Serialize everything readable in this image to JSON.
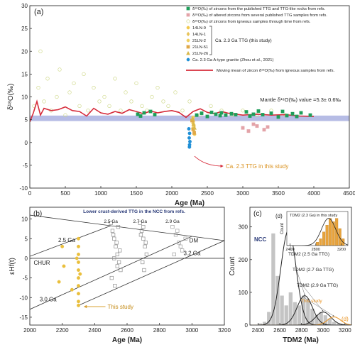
{
  "chart_data": [
    {
      "type": "scatter",
      "label": "(a)",
      "xlabel": "Age (Ma)",
      "ylabel": "δ¹⁸O(‰)",
      "xlim": [
        0,
        4500
      ],
      "xticks": [
        0,
        500,
        1000,
        1500,
        2000,
        2500,
        3000,
        3500,
        4000,
        4500
      ],
      "ylim": [
        -10,
        30
      ],
      "yticks": [
        -10,
        -5,
        0,
        5,
        10,
        15,
        20,
        25,
        30
      ],
      "legend": "upper right",
      "band": {
        "label": "Mantle δ¹⁸O(‰) value =5.3± 0.6‰",
        "range": [
          4.7,
          5.9
        ],
        "color": "#a9b0e0"
      },
      "bracket_label": "Ca. 2.3 Ga TTG (this study)",
      "annotation": "Ca. 2.3 TTG in this study",
      "series": [
        {
          "name": "δ¹⁸O(‰) of zircons from the published TTG and TTG-like rocks from refs.",
          "color": "#1e9e5a",
          "marker": "square",
          "x": [
            1520,
            1560,
            1610,
            1700,
            1760,
            2350,
            2420,
            2500,
            2560,
            2620,
            2680,
            2700,
            2760,
            2840,
            2900,
            3050,
            3100,
            3150,
            3220,
            3280,
            3400,
            3500,
            3560,
            3620,
            3700,
            3760,
            3820,
            3950
          ],
          "values": [
            6.2,
            5.8,
            6.5,
            6.8,
            6.1,
            6.0,
            6.4,
            5.7,
            6.6,
            6.2,
            5.9,
            6.5,
            6.0,
            6.3,
            6.1,
            6.7,
            5.8,
            6.2,
            6.9,
            6.1,
            6.4,
            5.6,
            6.8,
            5.9,
            6.3,
            5.7,
            6.5,
            6.0
          ]
        },
        {
          "name": "δ¹⁸O(‰) of altered zircons from several published TTG samples from refs.",
          "color": "#e3a3a8",
          "marker": "square",
          "x": [
            3000,
            3080,
            3150,
            3200,
            3300,
            3350
          ],
          "values": [
            3.2,
            2.5,
            4.0,
            3.6,
            2.8,
            3.4
          ]
        },
        {
          "name": "δ¹⁸O(‰) of zircons from igneous samples through time from refs.",
          "color": "#cfd98a",
          "marker": "open-circle",
          "x": [
            60,
            120,
            150,
            200,
            250,
            300,
            380,
            420,
            500,
            560,
            620,
            700,
            760,
            820,
            900,
            980,
            1050,
            1120,
            1200,
            1280,
            1350,
            1430,
            1500,
            1580,
            1650,
            1720,
            1800,
            1880,
            1950,
            2050,
            2150,
            2250,
            2400,
            2550,
            2700,
            2850,
            3000,
            3200,
            3400,
            3600
          ],
          "values": [
            8,
            12,
            20,
            9,
            14,
            7,
            10,
            16,
            6,
            11,
            13,
            8,
            15,
            7,
            12,
            9,
            10,
            8,
            14,
            7,
            11,
            9,
            13,
            8,
            7,
            10,
            12,
            9,
            8,
            11,
            7,
            9,
            6,
            8,
            7,
            6,
            7,
            6,
            7,
            6
          ]
        },
        {
          "name": "14LN-9",
          "color": "#f2c94c",
          "marker": "circle",
          "x": [
            2290,
            2300,
            2310
          ],
          "values": [
            5.0,
            4.2,
            3.5
          ]
        },
        {
          "name": "14LN-1",
          "color": "#e8c45a",
          "marker": "diamond",
          "x": [
            2295,
            2305,
            2315
          ],
          "values": [
            3.0,
            4.6,
            2.4
          ]
        },
        {
          "name": "21LN-2",
          "color": "#f0d060",
          "marker": "circle",
          "x": [
            2300,
            2310,
            2320
          ],
          "values": [
            5.5,
            3.8,
            1.8
          ]
        },
        {
          "name": "21LN-51",
          "color": "#e0a848",
          "marker": "square",
          "x": [
            2285,
            2300,
            2315
          ],
          "values": [
            4.8,
            2.9,
            2.1
          ]
        },
        {
          "name": "21LN-26",
          "color": "#d9b84a",
          "marker": "triangle",
          "x": [
            2305,
            2295,
            2320
          ],
          "values": [
            4.0,
            5.2,
            3.2
          ]
        },
        {
          "name": "Ca. 2.3 Ga A-type granite (Zhou et al., 2021)",
          "color": "#1f8fd6",
          "marker": "circle",
          "x": [
            2240,
            2250,
            2245,
            2255,
            2250,
            2248
          ],
          "values": [
            3.0,
            2.0,
            1.0,
            0.2,
            -0.5,
            -1.0
          ]
        },
        {
          "name": "Moving mean of zircon δ¹⁸O(‰) from igneous samples from refs.",
          "color": "#d62b3a",
          "marker": "line",
          "x": [
            0,
            50,
            100,
            150,
            200,
            300,
            400,
            500,
            600,
            700,
            800,
            900,
            1000,
            1100,
            1200,
            1300,
            1400,
            1500,
            1600,
            1700,
            1800,
            1900,
            2000,
            2100,
            2200,
            2300,
            2400,
            2500,
            2600,
            2700,
            2800,
            2900,
            3000,
            3200,
            3400,
            3600,
            3800,
            4000
          ],
          "values": [
            4.5,
            6.5,
            9,
            6,
            7.5,
            7,
            7.2,
            7.8,
            7,
            6.8,
            5.8,
            7.5,
            6.5,
            6.2,
            6.8,
            6.4,
            7.2,
            6.8,
            6.3,
            6.9,
            6.5,
            6.8,
            7,
            6.6,
            5.5,
            6.8,
            7.4,
            6.6,
            6.3,
            6.8,
            6.4,
            6.2,
            6.0,
            6.2,
            6.0,
            6.1,
            5.8,
            5.7
          ]
        }
      ]
    },
    {
      "type": "scatter",
      "label": "(b)",
      "xlabel": "Age (Ma)",
      "ylabel": "εHf(t)",
      "xlim": [
        2000,
        3200
      ],
      "xticks": [
        2000,
        2200,
        2400,
        2600,
        2800,
        3000,
        3200
      ],
      "ylim": [
        -17,
        13
      ],
      "yticks": [
        -15,
        -10,
        -5,
        0,
        5,
        10
      ],
      "annotation": "Lower crust-derived TTG in the NCC from refs.",
      "lines": [
        {
          "name": "DM",
          "x": [
            2000,
            3200
          ],
          "y": [
            11,
            4.5
          ]
        },
        {
          "name": "CHUR",
          "x": [
            2000,
            3200
          ],
          "y": [
            0,
            0
          ]
        },
        {
          "name": "2.5 Ga",
          "x": [
            2000,
            2500
          ],
          "y": [
            0.5,
            8.3
          ]
        },
        {
          "name": "3.0 Ga",
          "x": [
            2000,
            3000
          ],
          "y": [
            -13,
            5.6
          ]
        },
        {
          "name": "3.2 Ga",
          "x": [
            2300,
            3200
          ],
          "y": [
            -12,
            4.5
          ]
        }
      ],
      "series": [
        {
          "name": "2.5 Ga",
          "color": "#8f8f8f",
          "marker": "open-square",
          "x": [
            2500,
            2510,
            2520,
            2530,
            2540,
            2550,
            2560,
            2505,
            2525,
            2545,
            2515,
            2535,
            2555,
            2520,
            2540
          ],
          "values": [
            9,
            7,
            5,
            3,
            1,
            -1,
            -3,
            -5,
            -7,
            8,
            6,
            4,
            2,
            0,
            -2
          ]
        },
        {
          "name": "2.7 Ga",
          "color": "#8f8f8f",
          "marker": "open-square",
          "x": [
            2680,
            2690,
            2700,
            2710,
            2720,
            2695,
            2705,
            2685,
            2715,
            2700
          ],
          "values": [
            9,
            7,
            5,
            3,
            1,
            -1,
            -3,
            6,
            4,
            8
          ]
        },
        {
          "name": "2.9 Ga",
          "color": "#a0a0a0",
          "marker": "open-square",
          "x": [
            2880,
            2900,
            2920,
            2940,
            2960,
            2910,
            2930,
            2890
          ],
          "values": [
            8,
            6,
            4,
            2,
            5,
            7,
            3,
            1
          ]
        },
        {
          "name": "This study",
          "color": "#eabf3c",
          "marker": "circle",
          "x": [
            2300,
            2300,
            2300,
            2300,
            2300,
            2300,
            2300,
            2300,
            2300,
            2300,
            2290,
            2310,
            2200,
            2210,
            2180,
            2260
          ],
          "values": [
            5,
            3,
            1,
            -1,
            -3,
            -5,
            -7,
            -9,
            -11,
            -12,
            0,
            -4,
            3,
            -2,
            -6,
            -8
          ]
        }
      ]
    },
    {
      "type": "histogram",
      "label": "(c)",
      "xlabel": "TDM2 (Ma)",
      "ylabel": "Count",
      "annotation": "NCC",
      "xlim": [
        2325,
        3260
      ],
      "xticks": [
        2400,
        2600,
        2800,
        3000,
        3200
      ],
      "ylim": [
        0,
        360
      ],
      "yticks": [
        0,
        100,
        200,
        300
      ],
      "bar_color": "#c4c4c4",
      "bins": [
        2400,
        2440,
        2480,
        2520,
        2560,
        2600,
        2640,
        2680,
        2720,
        2760,
        2800,
        2840,
        2880,
        2920,
        2960,
        3000,
        3040,
        3080,
        3120,
        3160,
        3200,
        3240
      ],
      "counts": [
        5,
        10,
        40,
        280,
        150,
        90,
        60,
        100,
        70,
        60,
        90,
        80,
        50,
        30,
        40,
        30,
        20,
        10,
        5,
        3,
        2
      ],
      "curves": [
        {
          "name": "TDM2 (2.5 Ga TTG)",
          "center": 2680,
          "sd": 70,
          "peak": 290,
          "color": "#222222"
        },
        {
          "name": "TDM2 (2.7 Ga TTG)",
          "center": 2830,
          "sd": 70,
          "peak": 90,
          "color": "#222222"
        },
        {
          "name": "TDM2 (2.9 Ga TTG)",
          "center": 3000,
          "sd": 70,
          "peak": 40,
          "color": "#222222"
        },
        {
          "name": "This study",
          "center": 3100,
          "sd": 60,
          "peak": 25,
          "color": "#e8901c"
        }
      ]
    },
    {
      "type": "histogram",
      "label": "(d)",
      "title": "TDM2 (2.3 Ga) in this study",
      "ylabel": "Count",
      "xlim": [
        2350,
        3300
      ],
      "xticks": [
        2400,
        2800,
        3200
      ],
      "ylim": [
        0,
        10
      ],
      "bar_color": "#e8a33c",
      "bins": [
        2800,
        2850,
        2900,
        2950,
        3000,
        3050,
        3100,
        3150,
        3200,
        3250
      ],
      "counts": [
        1,
        2,
        4,
        6,
        8,
        7,
        8,
        5,
        2
      ],
      "curves": [
        {
          "name": "",
          "center": 3000,
          "sd": 110,
          "peak": 8,
          "color": "#222222"
        }
      ]
    }
  ]
}
